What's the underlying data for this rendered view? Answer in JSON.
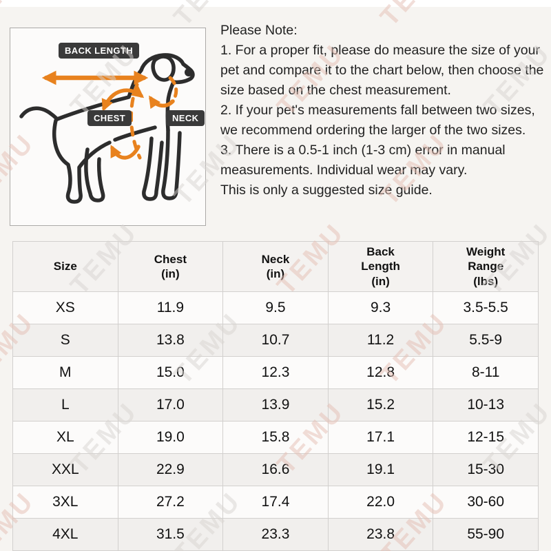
{
  "diagram": {
    "back_length_label": "BACK LENGTH",
    "chest_label": "CHEST",
    "neck_label": "NECK"
  },
  "note": {
    "title": "Please Note:",
    "paragraphs": [
      "1. For a proper fit, please do measure the size of your pet and compare it to the chart below, then choose the size based on the chest measurement.",
      "2. If your pet's measurements fall between two sizes, we recommend ordering the larger of the two sizes.",
      "3. There is a 0.5-1 inch (1-3 cm) error in manual measurements. Individual wear may vary.",
      "This is only a suggested size guide."
    ]
  },
  "table": {
    "headers": [
      "Size",
      "Chest\n(in)",
      "Neck\n(in)",
      "Back\nLength\n(in)",
      "Weight\nRange\n(lbs)"
    ],
    "rows": [
      [
        "XS",
        "11.9",
        "9.5",
        "9.3",
        "3.5-5.5"
      ],
      [
        "S",
        "13.8",
        "10.7",
        "11.2",
        "5.5-9"
      ],
      [
        "M",
        "15.0",
        "12.3",
        "12.8",
        "8-11"
      ],
      [
        "L",
        "17.0",
        "13.9",
        "15.2",
        "10-13"
      ],
      [
        "XL",
        "19.0",
        "15.8",
        "17.1",
        "12-15"
      ],
      [
        "XXL",
        "22.9",
        "16.6",
        "19.1",
        "15-30"
      ],
      [
        "3XL",
        "27.2",
        "17.4",
        "22.0",
        "30-60"
      ],
      [
        "4XL",
        "31.5",
        "23.3",
        "23.8",
        "55-90"
      ]
    ]
  },
  "watermark": {
    "text": "TEMU"
  },
  "colors": {
    "accent_orange": "#E8821E",
    "outline_dark": "#2D2D2D",
    "badge_dark": "#3A3A3A",
    "watermark_pink": "#E5BFB4",
    "watermark_gray": "#D8D4D1",
    "header_bg": "#F4F2F0",
    "row_alt_bg": "#F1EFED",
    "page_bg": "#F6F4F1"
  }
}
